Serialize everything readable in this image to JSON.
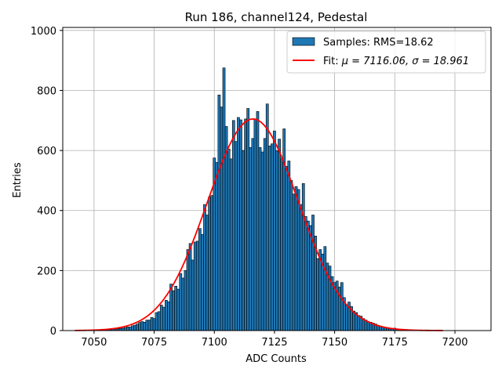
{
  "chart_data": {
    "type": "bar",
    "title": "Run 186, channel124, Pedestal",
    "xlabel": "ADC Counts",
    "ylabel": "Entries",
    "xlim": [
      7037,
      7215
    ],
    "ylim": [
      0,
      1010
    ],
    "xticks": [
      7050,
      7075,
      7100,
      7125,
      7150,
      7175,
      7200
    ],
    "yticks": [
      0,
      200,
      400,
      600,
      800,
      1000
    ],
    "grid": true,
    "legend_position": "top-right",
    "colors": {
      "bars": "#1f77b4",
      "bar_edge": "#000000",
      "fit": "#ff0000",
      "grid": "#b0b0b0"
    },
    "histogram": {
      "name": "Samples: RMS=18.62",
      "bin_width": 1,
      "bins": [
        [
          7055,
          2
        ],
        [
          7056,
          3
        ],
        [
          7057,
          3
        ],
        [
          7058,
          5
        ],
        [
          7059,
          4
        ],
        [
          7060,
          6
        ],
        [
          7061,
          7
        ],
        [
          7062,
          8
        ],
        [
          7063,
          10
        ],
        [
          7064,
          12
        ],
        [
          7065,
          12
        ],
        [
          7066,
          16
        ],
        [
          7067,
          18
        ],
        [
          7068,
          22
        ],
        [
          7069,
          27
        ],
        [
          7070,
          30
        ],
        [
          7071,
          28
        ],
        [
          7072,
          35
        ],
        [
          7073,
          35
        ],
        [
          7074,
          44
        ],
        [
          7075,
          40
        ],
        [
          7076,
          60
        ],
        [
          7077,
          63
        ],
        [
          7078,
          85
        ],
        [
          7079,
          78
        ],
        [
          7080,
          101
        ],
        [
          7081,
          96
        ],
        [
          7082,
          155
        ],
        [
          7083,
          133
        ],
        [
          7084,
          148
        ],
        [
          7085,
          138
        ],
        [
          7086,
          190
        ],
        [
          7087,
          175
        ],
        [
          7088,
          200
        ],
        [
          7089,
          270
        ],
        [
          7090,
          290
        ],
        [
          7091,
          235
        ],
        [
          7092,
          295
        ],
        [
          7093,
          298
        ],
        [
          7094,
          340
        ],
        [
          7095,
          320
        ],
        [
          7096,
          420
        ],
        [
          7097,
          385
        ],
        [
          7098,
          445
        ],
        [
          7099,
          450
        ],
        [
          7100,
          575
        ],
        [
          7101,
          560
        ],
        [
          7102,
          785
        ],
        [
          7103,
          745
        ],
        [
          7104,
          875
        ],
        [
          7105,
          680
        ],
        [
          7106,
          605
        ],
        [
          7107,
          572
        ],
        [
          7108,
          700
        ],
        [
          7109,
          630
        ],
        [
          7110,
          710
        ],
        [
          7111,
          702
        ],
        [
          7112,
          600
        ],
        [
          7113,
          705
        ],
        [
          7114,
          740
        ],
        [
          7115,
          610
        ],
        [
          7116,
          640
        ],
        [
          7117,
          705
        ],
        [
          7118,
          730
        ],
        [
          7119,
          610
        ],
        [
          7120,
          595
        ],
        [
          7121,
          640
        ],
        [
          7122,
          755
        ],
        [
          7123,
          615
        ],
        [
          7124,
          622
        ],
        [
          7125,
          665
        ],
        [
          7126,
          600
        ],
        [
          7127,
          638
        ],
        [
          7128,
          573
        ],
        [
          7129,
          672
        ],
        [
          7130,
          547
        ],
        [
          7131,
          565
        ],
        [
          7132,
          500
        ],
        [
          7133,
          455
        ],
        [
          7134,
          480
        ],
        [
          7135,
          470
        ],
        [
          7136,
          420
        ],
        [
          7137,
          490
        ],
        [
          7138,
          380
        ],
        [
          7139,
          365
        ],
        [
          7140,
          350
        ],
        [
          7141,
          385
        ],
        [
          7142,
          315
        ],
        [
          7143,
          240
        ],
        [
          7144,
          270
        ],
        [
          7145,
          255
        ],
        [
          7146,
          280
        ],
        [
          7147,
          225
        ],
        [
          7148,
          215
        ],
        [
          7149,
          180
        ],
        [
          7150,
          160
        ],
        [
          7151,
          165
        ],
        [
          7152,
          145
        ],
        [
          7153,
          160
        ],
        [
          7154,
          110
        ],
        [
          7155,
          85
        ],
        [
          7156,
          95
        ],
        [
          7157,
          80
        ],
        [
          7158,
          65
        ],
        [
          7159,
          60
        ],
        [
          7160,
          50
        ],
        [
          7161,
          48
        ],
        [
          7162,
          40
        ],
        [
          7163,
          35
        ],
        [
          7164,
          30
        ],
        [
          7165,
          28
        ],
        [
          7166,
          25
        ],
        [
          7167,
          22
        ],
        [
          7168,
          18
        ],
        [
          7169,
          15
        ],
        [
          7170,
          12
        ],
        [
          7171,
          10
        ],
        [
          7172,
          9
        ],
        [
          7173,
          7
        ],
        [
          7174,
          6
        ],
        [
          7175,
          8
        ],
        [
          7176,
          5
        ],
        [
          7177,
          4
        ],
        [
          7178,
          3
        ],
        [
          7179,
          4
        ],
        [
          7180,
          2
        ]
      ]
    },
    "fit": {
      "name": "Fit: μ = 7116.06, σ = 18.961",
      "label_prefix": "Fit: ",
      "label_mu": "μ = 7116.06, ",
      "label_sigma": "σ = 18.961",
      "mu": 7116.06,
      "sigma": 18.961,
      "amplitude": 705,
      "x_range": [
        7042,
        7195
      ]
    }
  }
}
